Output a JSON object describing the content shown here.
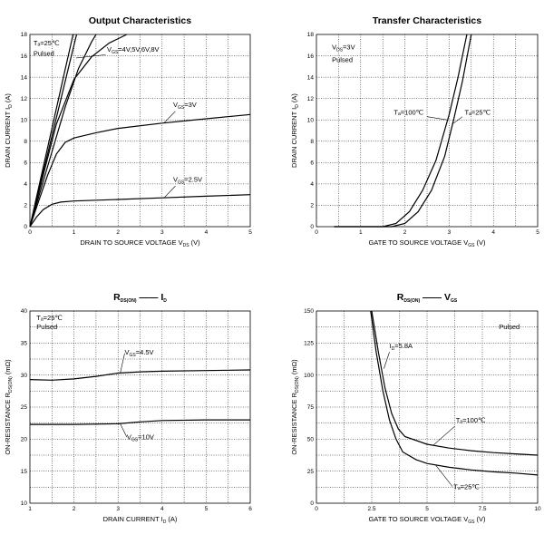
{
  "chart_data": [
    {
      "type": "line",
      "title": "Output Characteristics",
      "xlabel": "DRAIN TO SOURCE VOLTAGE",
      "xlabel_var": "V",
      "xlabel_var_sub": "DS",
      "xlabel_unit": "(V)",
      "ylabel": "DRAIN CURRENT",
      "ylabel_var": "I",
      "ylabel_var_sub": "D",
      "ylabel_unit": "(A)",
      "xlim": [
        0,
        5
      ],
      "ylim": [
        0,
        18
      ],
      "xticks": [
        "0",
        "1",
        "2",
        "3",
        "4",
        "5"
      ],
      "yticks": [
        "0",
        "2",
        "4",
        "6",
        "8",
        "10",
        "12",
        "14",
        "16",
        "18"
      ],
      "grid": true,
      "annotations": [
        {
          "text": "Tₐ=25℃",
          "x": 0.08,
          "y": 17.0
        },
        {
          "text": "Pulsed",
          "x": 0.08,
          "y": 16.0
        },
        {
          "text": "V",
          "sub": "GS",
          "rest": "=4V,5V,6V,8V",
          "x": 1.75,
          "y": 16.4
        },
        {
          "text": "V",
          "sub": "GS",
          "rest": "=3V",
          "x": 3.25,
          "y": 11.2
        },
        {
          "text": "V",
          "sub": "GS",
          "rest": "=2.5V",
          "x": 3.25,
          "y": 4.2
        }
      ],
      "series": [
        {
          "x": [
            0,
            0.25,
            0.5,
            0.75,
            0.98
          ],
          "y": [
            0,
            4.6,
            9.2,
            13.8,
            18
          ]
        },
        {
          "x": [
            0,
            0.3,
            0.6,
            0.9,
            1.06
          ],
          "y": [
            0,
            5.1,
            10.2,
            15.3,
            18
          ]
        },
        {
          "x": [
            0,
            0.4,
            0.8,
            1.1,
            1.4,
            1.5
          ],
          "y": [
            0,
            5.6,
            11.2,
            14.8,
            17.3,
            18
          ]
        },
        {
          "x": [
            0,
            0.3,
            0.6,
            1.0,
            1.4,
            1.8,
            2.2
          ],
          "y": [
            0,
            4.8,
            9.6,
            13.8,
            15.9,
            17.2,
            18
          ]
        },
        {
          "x": [
            0,
            0.2,
            0.4,
            0.6,
            0.8,
            1.0,
            1.5,
            2,
            3,
            4,
            5
          ],
          "y": [
            0,
            2.4,
            4.8,
            6.8,
            7.9,
            8.3,
            8.8,
            9.2,
            9.7,
            10.1,
            10.5
          ]
        },
        {
          "x": [
            0,
            0.15,
            0.3,
            0.5,
            0.7,
            1.0,
            2,
            3,
            4,
            5
          ],
          "y": [
            0,
            0.9,
            1.6,
            2.1,
            2.3,
            2.4,
            2.55,
            2.7,
            2.85,
            3.0
          ]
        }
      ]
    },
    {
      "type": "line",
      "title": "Transfer Characteristics",
      "xlabel": "GATE TO SOURCE VOLTAGE",
      "xlabel_var": "V",
      "xlabel_var_sub": "GS",
      "xlabel_unit": "(V)",
      "ylabel": "DRAIN CURRENT",
      "ylabel_var": "I",
      "ylabel_var_sub": "D",
      "ylabel_unit": "(A)",
      "xlim": [
        0,
        5
      ],
      "ylim": [
        0,
        18
      ],
      "xticks": [
        "0",
        "1",
        "2",
        "3",
        "4",
        "5"
      ],
      "yticks": [
        "0",
        "2",
        "4",
        "6",
        "8",
        "10",
        "12",
        "14",
        "16",
        "18"
      ],
      "grid": true,
      "annotations": [
        {
          "text": "V",
          "sub": "DS",
          "rest": "=3V",
          "x": 0.35,
          "y": 16.6
        },
        {
          "text": "Pulsed",
          "x": 0.35,
          "y": 15.4
        },
        {
          "text": "Tₐ=100℃",
          "x": 1.75,
          "y": 10.5
        },
        {
          "text": "Tₐ=25℃",
          "x": 3.35,
          "y": 10.5
        }
      ],
      "series": [
        {
          "name_label": "Tₐ=100℃",
          "x": [
            0.4,
            1.5,
            1.8,
            2.1,
            2.4,
            2.7,
            3.0,
            3.2,
            3.4
          ],
          "y": [
            0,
            0,
            0.3,
            1.4,
            3.4,
            6.2,
            10.5,
            14.0,
            18
          ]
        },
        {
          "name_label": "Tₐ=25℃",
          "x": [
            0.4,
            1.7,
            2.0,
            2.3,
            2.6,
            2.9,
            3.1,
            3.3,
            3.5
          ],
          "y": [
            0,
            0,
            0.3,
            1.4,
            3.4,
            6.6,
            10.0,
            13.6,
            18
          ]
        }
      ]
    },
    {
      "type": "line",
      "title": "R",
      "title_sub": "DS(ON)",
      "title_rest": "I",
      "title_rest_sub": "D",
      "xlabel": "DRAIN CURRENT",
      "xlabel_var": "I",
      "xlabel_var_sub": "D",
      "xlabel_unit": "(A)",
      "ylabel": "ON-RESISTANCE",
      "ylabel_var": "R",
      "ylabel_var_sub": "DS(ON)",
      "ylabel_unit": "(mΩ)",
      "xlim": [
        1,
        6
      ],
      "ylim": [
        10,
        40
      ],
      "xticks": [
        "1",
        "2",
        "3",
        "4",
        "5",
        "6"
      ],
      "yticks": [
        "10",
        "15",
        "20",
        "25",
        "30",
        "35",
        "40"
      ],
      "grid": true,
      "annotations": [
        {
          "text": "Tₐ=25℃",
          "x": 1.15,
          "y": 38.6
        },
        {
          "text": "Pulsed",
          "x": 1.15,
          "y": 37.2
        },
        {
          "text": "V",
          "sub": "GS",
          "rest": "=4.5V",
          "x": 3.15,
          "y": 33.2
        },
        {
          "text": "V",
          "sub": "GS",
          "rest": "=10V",
          "x": 3.2,
          "y": 20.0
        }
      ],
      "series": [
        {
          "name_label": "VGS=4.5V",
          "x": [
            1,
            1.5,
            2,
            2.5,
            3,
            3.5,
            4,
            5,
            6
          ],
          "y": [
            29.3,
            29.2,
            29.4,
            29.8,
            30.3,
            30.5,
            30.6,
            30.7,
            30.8
          ]
        },
        {
          "name_label": "VGS=10V",
          "x": [
            1,
            2,
            3,
            3.5,
            4,
            5,
            6
          ],
          "y": [
            22.3,
            22.3,
            22.4,
            22.7,
            22.9,
            23.0,
            23.0
          ]
        }
      ]
    },
    {
      "type": "line",
      "title": "R",
      "title_sub": "DS(ON)",
      "title_rest": "V",
      "title_rest_sub": "GS",
      "xlabel": "GATE TO SOURCE VOLTAGE",
      "xlabel_var": "V",
      "xlabel_var_sub": "GS",
      "xlabel_unit": "(V)",
      "ylabel": "ON-RESISTANCE",
      "ylabel_var": "R",
      "ylabel_var_sub": "DS(ON)",
      "ylabel_unit": "(mΩ)",
      "xlim": [
        0,
        10
      ],
      "ylim": [
        0,
        150
      ],
      "xticks": [
        "0",
        "2.5",
        "5",
        "7.5",
        "10"
      ],
      "yticks": [
        "0",
        "25",
        "50",
        "75",
        "100",
        "125",
        "150"
      ],
      "grid": true,
      "annotations": [
        {
          "text": "Pulsed",
          "x": 8.25,
          "y": 136
        },
        {
          "text": "I",
          "sub": "D",
          "rest": "=5.8A",
          "x": 3.3,
          "y": 121
        },
        {
          "text": "Tₐ=100℃",
          "x": 6.3,
          "y": 63
        },
        {
          "text": "Tₐ=25℃",
          "x": 6.2,
          "y": 11
        }
      ],
      "series": [
        {
          "name_label": "Tₐ=100℃",
          "x": [
            2.5,
            2.8,
            3.1,
            3.4,
            3.7,
            4,
            5,
            6,
            7,
            8,
            9,
            10
          ],
          "y": [
            150,
            118,
            90,
            70,
            58,
            52,
            46,
            43,
            41,
            39.5,
            38.5,
            37.5
          ]
        },
        {
          "name_label": "Tₐ=25℃",
          "x": [
            2.45,
            2.7,
            3.0,
            3.3,
            3.6,
            3.9,
            4.5,
            5,
            6,
            7,
            8,
            9,
            10
          ],
          "y": [
            150,
            118,
            88,
            65,
            50,
            40,
            34,
            31,
            28,
            26,
            24.5,
            23.5,
            22
          ]
        }
      ]
    }
  ]
}
